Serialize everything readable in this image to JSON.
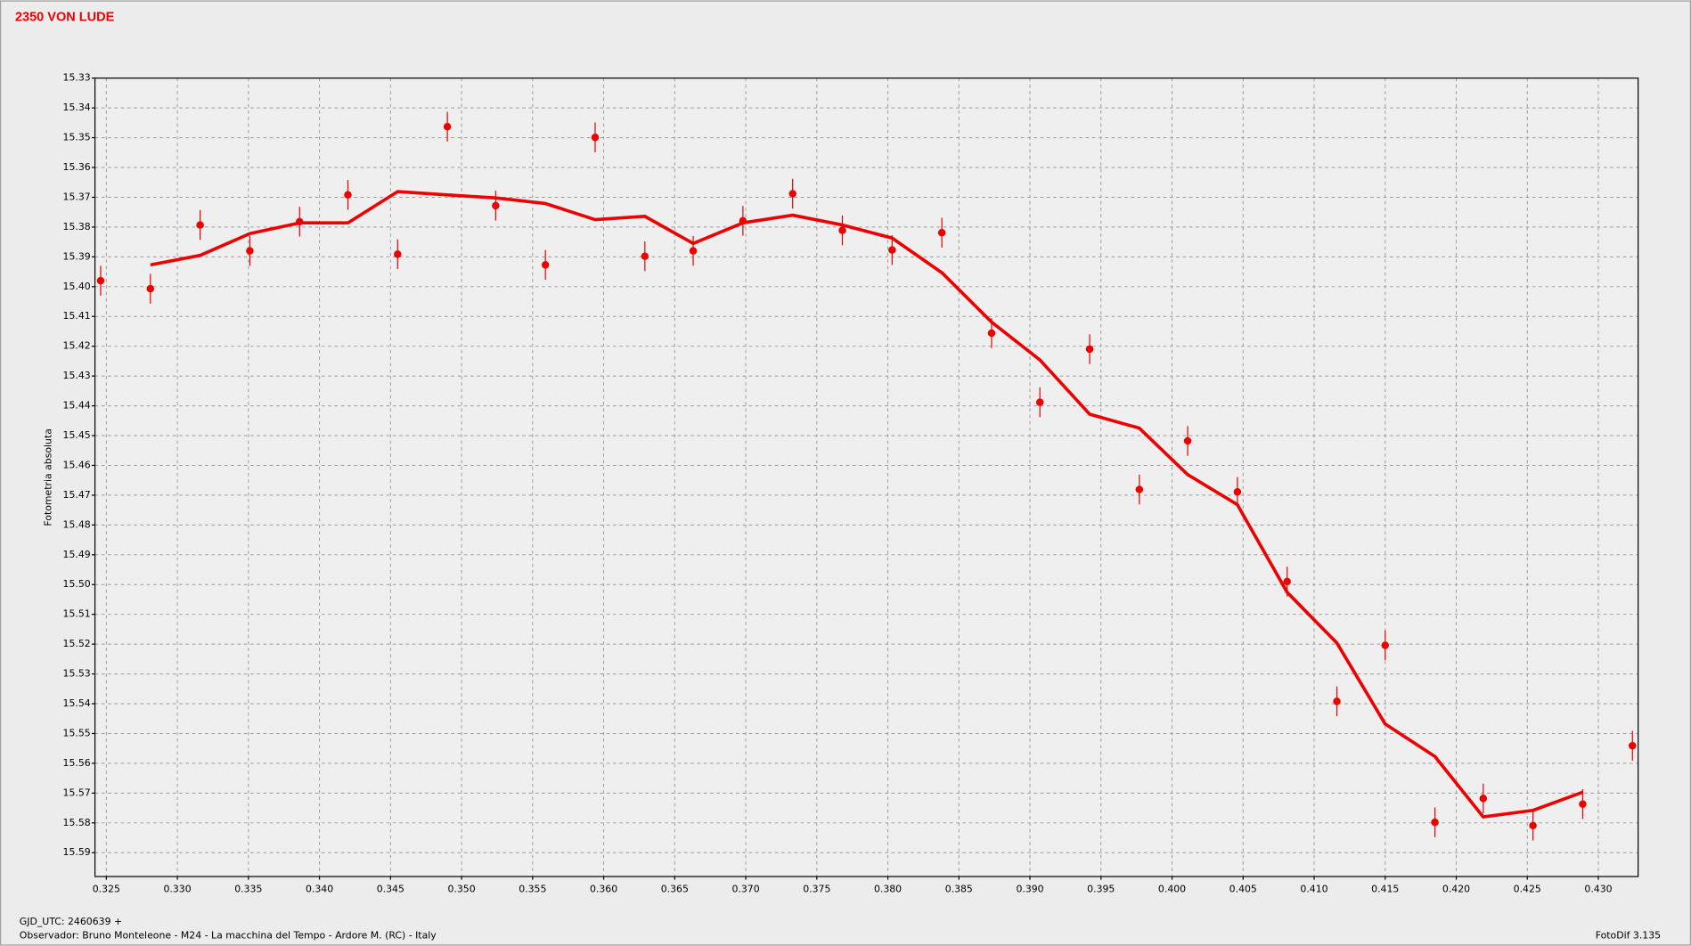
{
  "chart_data": {
    "type": "scatter",
    "title": "2350 VON LUDE",
    "ylabel": "Fotometria absoluta",
    "footer": {
      "left": "GJD_UTC: 2460639 +",
      "observer": "Observador: Bruno Monteleone - M24 - La macchina del Tempo - Ardore M. (RC) - Italy",
      "right": "FotoDif 3.135"
    },
    "x": [
      0.3246,
      0.3281,
      0.3316,
      0.3351,
      0.3386,
      0.342,
      0.3455,
      0.349,
      0.3524,
      0.3559,
      0.3594,
      0.3629,
      0.3663,
      0.3698,
      0.3733,
      0.3768,
      0.3803,
      0.3838,
      0.3873,
      0.3907,
      0.3942,
      0.3977,
      0.4011,
      0.4046,
      0.4081,
      0.4116,
      0.415,
      0.4185,
      0.4219,
      0.4254,
      0.4289,
      0.4324
    ],
    "series": [
      {
        "type": "scatter",
        "color": "#ee0000",
        "values": [
          15.398,
          15.4007,
          15.3793,
          15.388,
          15.3782,
          15.3692,
          15.3891,
          15.3463,
          15.3728,
          15.3927,
          15.3499,
          15.3898,
          15.388,
          15.3779,
          15.3688,
          15.3811,
          15.3877,
          15.3819,
          15.4156,
          15.4388,
          15.421,
          15.4681,
          15.4518,
          15.4689,
          15.499,
          15.5392,
          15.5204,
          15.5798,
          15.5718,
          15.5809,
          15.5737,
          15.5541
        ],
        "errors": [
          0.005,
          0.005,
          0.005,
          0.005,
          0.005,
          0.005,
          0.005,
          0.005,
          0.005,
          0.005,
          0.005,
          0.005,
          0.005,
          0.005,
          0.005,
          0.005,
          0.005,
          0.005,
          0.005,
          0.005,
          0.005,
          0.005,
          0.005,
          0.005,
          0.005,
          0.005,
          0.005,
          0.005,
          0.005,
          0.005,
          0.005,
          0.005
        ]
      },
      {
        "type": "line",
        "color": "#ee0000",
        "values": [
          null,
          15.3927,
          15.3895,
          15.3822,
          15.3786,
          15.3786,
          15.3681,
          15.3692,
          15.3702,
          15.3721,
          15.3775,
          15.3764,
          15.3855,
          15.3786,
          15.376,
          15.3793,
          15.3837,
          15.3953,
          15.4119,
          15.4246,
          15.4428,
          15.4475,
          15.4631,
          15.4732,
          15.5026,
          15.5196,
          15.5468,
          15.5577,
          15.578,
          15.5758,
          15.5697,
          null
        ]
      }
    ],
    "xlim": [
      0.3242,
      0.4328
    ],
    "ylim": [
      15.33,
      15.598
    ],
    "y_inverted": true,
    "grid": true,
    "xticks": [
      0.325,
      {
        "value": 0.33,
        "label": "0.330"
      },
      0.335,
      {
        "value": 0.34,
        "label": "0.340"
      },
      0.345,
      {
        "value": 0.35,
        "label": "0.350"
      },
      0.355,
      {
        "value": 0.36,
        "label": "0.360"
      },
      0.365,
      {
        "value": 0.37,
        "label": "0.370"
      },
      0.375,
      {
        "value": 0.38,
        "label": "0.380"
      },
      0.385,
      {
        "value": 0.39,
        "label": "0.390"
      },
      0.395,
      {
        "value": 0.4,
        "label": "0.400"
      },
      0.405,
      {
        "value": 0.41,
        "label": "0.410"
      },
      0.415,
      {
        "value": 0.42,
        "label": "0.420"
      },
      0.425,
      {
        "value": 0.43,
        "label": "0.430"
      }
    ],
    "yticks": [
      15.33,
      15.34,
      15.35,
      15.36,
      15.37,
      15.38,
      15.39,
      {
        "value": 15.4,
        "label": "15.40"
      },
      15.41,
      15.42,
      15.43,
      15.44,
      15.45,
      15.46,
      15.47,
      15.48,
      15.49,
      {
        "value": 15.5,
        "label": "15.50"
      },
      15.51,
      15.52,
      15.53,
      15.54,
      15.55,
      15.56,
      15.57,
      15.58,
      15.59
    ]
  }
}
